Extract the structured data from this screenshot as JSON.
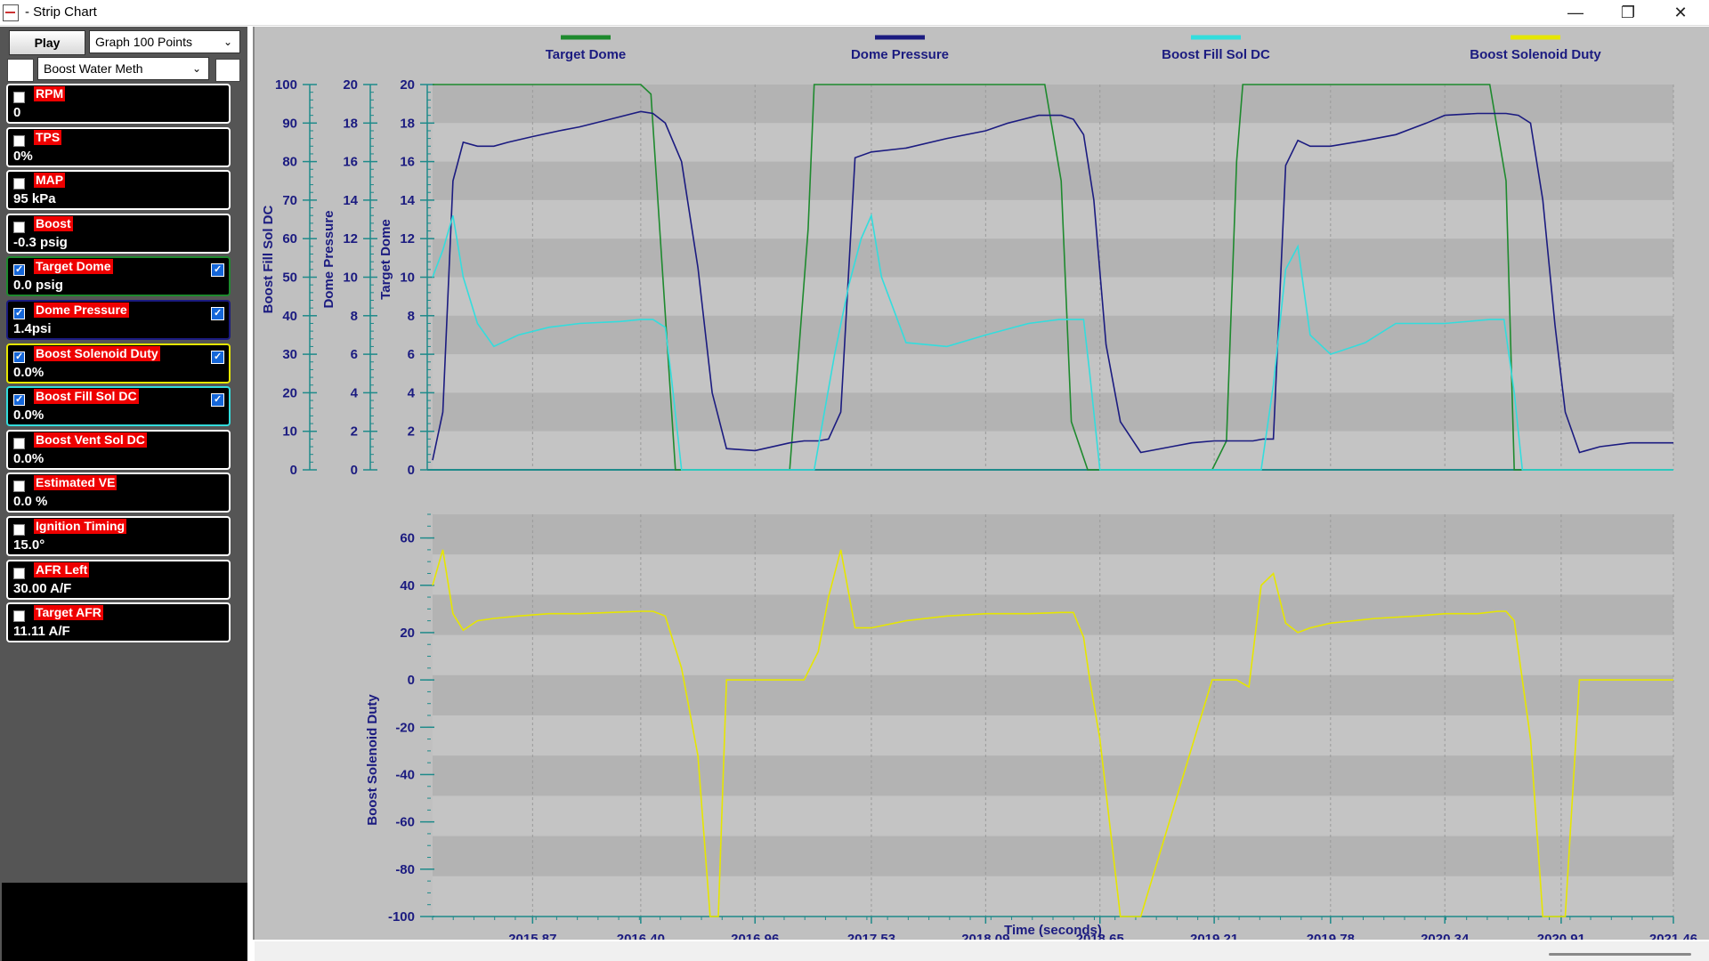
{
  "window": {
    "title": "- Strip Chart",
    "min_label": "—",
    "restore_label": "❐",
    "close_label": "✕"
  },
  "toolbar": {
    "play_label": "Play",
    "graph_select_value": "Graph 100 Points",
    "layout_select_value": "Boost Water Meth"
  },
  "channels": [
    {
      "name": "RPM",
      "value": "0",
      "checked": false,
      "border": "#ffffff",
      "plotted": false
    },
    {
      "name": "TPS",
      "value": "0%",
      "checked": false,
      "border": "#ffffff",
      "plotted": false
    },
    {
      "name": "MAP",
      "value": "95 kPa",
      "checked": false,
      "border": "#ffffff",
      "plotted": false
    },
    {
      "name": "Boost",
      "value": "-0.3 psig",
      "checked": false,
      "border": "#ffffff",
      "plotted": false
    },
    {
      "name": "Target Dome",
      "value": "0.0 psig",
      "checked": true,
      "border": "#1e8a2e",
      "plotted": true
    },
    {
      "name": "Dome Pressure",
      "value": "1.4psi",
      "checked": true,
      "border": "#1b1b80",
      "plotted": true
    },
    {
      "name": "Boost Solenoid Duty",
      "value": "0.0%",
      "checked": true,
      "border": "#e6e600",
      "plotted": true
    },
    {
      "name": "Boost Fill Sol DC",
      "value": "0.0%",
      "checked": true,
      "border": "#33dddd",
      "plotted": true
    },
    {
      "name": "Boost Vent Sol DC",
      "value": "0.0%",
      "checked": false,
      "border": "#ffffff",
      "plotted": false
    },
    {
      "name": "Estimated VE",
      "value": "0.0 %",
      "checked": false,
      "border": "#ffffff",
      "plotted": false
    },
    {
      "name": "Ignition Timing",
      "value": "15.0°",
      "checked": false,
      "border": "#ffffff",
      "plotted": false
    },
    {
      "name": "AFR Left",
      "value": "30.00 A/F",
      "checked": false,
      "border": "#ffffff",
      "plotted": false
    },
    {
      "name": "Target AFR",
      "value": "11.11 A/F",
      "checked": false,
      "border": "#ffffff",
      "plotted": false
    }
  ],
  "chart_data": {
    "type": "line",
    "xlabel": "Time (seconds)",
    "x_ticks": [
      "2015.87",
      "2016.40",
      "2016.96",
      "2017.53",
      "2018.09",
      "2018.65",
      "2019.21",
      "2019.78",
      "2020.34",
      "2020.91",
      "2021.46"
    ],
    "xlim": [
      2015.38,
      2021.46
    ],
    "legend": [
      {
        "name": "Target Dome",
        "color": "#1e8a2e"
      },
      {
        "name": "Dome Pressure",
        "color": "#1b1b80"
      },
      {
        "name": "Boost Fill Sol DC",
        "color": "#33dddd"
      },
      {
        "name": "Boost Solenoid Duty",
        "color": "#e6e600"
      }
    ],
    "legend_position": "top",
    "grid": true,
    "top_axes": [
      {
        "ylabel": "Boost Fill Sol DC",
        "ylim": [
          0,
          100
        ],
        "ticks": [
          "0",
          "10",
          "20",
          "30",
          "40",
          "50",
          "60",
          "70",
          "80",
          "90",
          "100"
        ]
      },
      {
        "ylabel": "Dome Pressure",
        "ylim": [
          0,
          20
        ],
        "ticks": [
          "0",
          "2",
          "4",
          "6",
          "8",
          "10",
          "12",
          "14",
          "16",
          "18",
          "20"
        ]
      },
      {
        "ylabel": "Target Dome",
        "ylim": [
          0,
          20
        ],
        "ticks": [
          "0",
          "2",
          "4",
          "6",
          "8",
          "10",
          "12",
          "14",
          "16",
          "18",
          "20"
        ]
      }
    ],
    "bottom_axis": {
      "ylabel": "Boost Solenoid Duty",
      "ylim": [
        -100,
        70
      ],
      "ticks": [
        "-100",
        "-80",
        "-60",
        "-40",
        "-20",
        "0",
        "20",
        "40",
        "60"
      ]
    },
    "series": [
      {
        "name": "Target Dome",
        "axis": "Target Dome",
        "color": "#1e8a2e",
        "x": [
          2015.38,
          2016.4,
          2016.45,
          2016.57,
          2016.6,
          2017.13,
          2017.22,
          2017.25,
          2018.38,
          2018.46,
          2018.51,
          2018.59,
          2018.65,
          2019.2,
          2019.27,
          2019.32,
          2019.35,
          2020.56,
          2020.64,
          2020.68,
          2021.46
        ],
        "y": [
          20,
          20,
          19.5,
          0,
          0,
          0,
          12.5,
          20,
          20,
          15,
          2.5,
          0,
          0,
          0,
          1.5,
          16,
          20,
          20,
          15,
          0,
          0
        ]
      },
      {
        "name": "Dome Pressure",
        "axis": "Target Dome",
        "color": "#1b1b80",
        "x": [
          2015.38,
          2015.43,
          2015.48,
          2015.53,
          2015.6,
          2015.68,
          2015.75,
          2015.87,
          2016.0,
          2016.1,
          2016.25,
          2016.4,
          2016.46,
          2016.52,
          2016.6,
          2016.68,
          2016.75,
          2016.82,
          2016.96,
          2017.13,
          2017.2,
          2017.27,
          2017.32,
          2017.38,
          2017.45,
          2017.53,
          2017.7,
          2017.9,
          2018.09,
          2018.2,
          2018.35,
          2018.46,
          2018.52,
          2018.57,
          2018.62,
          2018.68,
          2018.75,
          2018.85,
          2019.0,
          2019.1,
          2019.21,
          2019.32,
          2019.4,
          2019.45,
          2019.5,
          2019.56,
          2019.62,
          2019.68,
          2019.78,
          2019.95,
          2020.1,
          2020.25,
          2020.34,
          2020.5,
          2020.64,
          2020.7,
          2020.76,
          2020.82,
          2020.88,
          2020.93,
          2021.0,
          2021.1,
          2021.25,
          2021.46
        ],
        "y": [
          0.5,
          3,
          15,
          17,
          16.8,
          16.8,
          17,
          17.3,
          17.6,
          17.8,
          18.2,
          18.6,
          18.5,
          18,
          16,
          10.5,
          4,
          1.1,
          1,
          1.4,
          1.5,
          1.5,
          1.6,
          3,
          16.2,
          16.5,
          16.7,
          17.2,
          17.6,
          18,
          18.4,
          18.4,
          18.2,
          17.4,
          14,
          6.5,
          2.5,
          0.9,
          1.2,
          1.4,
          1.5,
          1.5,
          1.5,
          1.6,
          1.6,
          15.8,
          17.1,
          16.8,
          16.8,
          17.1,
          17.4,
          18,
          18.4,
          18.5,
          18.5,
          18.4,
          18,
          14,
          7.5,
          3,
          0.9,
          1.2,
          1.4,
          1.4
        ]
      },
      {
        "name": "Boost Fill Sol DC",
        "axis": "Boost Fill Sol DC",
        "color": "#33dddd",
        "x": [
          2015.38,
          2015.43,
          2015.48,
          2015.53,
          2015.6,
          2015.68,
          2015.8,
          2015.95,
          2016.1,
          2016.3,
          2016.4,
          2016.46,
          2016.52,
          2016.55,
          2016.6,
          2017.13,
          2017.25,
          2017.35,
          2017.42,
          2017.48,
          2017.53,
          2017.58,
          2017.7,
          2017.9,
          2018.09,
          2018.3,
          2018.45,
          2018.52,
          2018.57,
          2018.6,
          2018.65,
          2019.21,
          2019.27,
          2019.32,
          2019.38,
          2019.44,
          2019.5,
          2019.56,
          2019.62,
          2019.68,
          2019.78,
          2019.95,
          2020.1,
          2020.34,
          2020.56,
          2020.63,
          2020.68,
          2020.72,
          2021.46
        ],
        "y": [
          50,
          57,
          66,
          50,
          38,
          32,
          35,
          37,
          38,
          38.5,
          39,
          39,
          37,
          24,
          0,
          0,
          0,
          30,
          48,
          60,
          66,
          50,
          33,
          32,
          35,
          38,
          39,
          39,
          39,
          25,
          0,
          0,
          0,
          0,
          0,
          0,
          22,
          52,
          58,
          35,
          30,
          33,
          38,
          38,
          39,
          39,
          20,
          0,
          0
        ]
      },
      {
        "name": "Boost Solenoid Duty",
        "axis": "Boost Solenoid Duty",
        "color": "#e6e600",
        "x": [
          2015.38,
          2015.43,
          2015.48,
          2015.53,
          2015.6,
          2015.68,
          2015.8,
          2015.95,
          2016.1,
          2016.25,
          2016.4,
          2016.46,
          2016.52,
          2016.6,
          2016.68,
          2016.74,
          2016.78,
          2016.82,
          2017.13,
          2017.2,
          2017.27,
          2017.32,
          2017.38,
          2017.45,
          2017.53,
          2017.7,
          2017.9,
          2018.09,
          2018.3,
          2018.46,
          2018.52,
          2018.57,
          2018.6,
          2018.65,
          2018.75,
          2018.8,
          2018.85,
          2019.2,
          2019.26,
          2019.32,
          2019.38,
          2019.44,
          2019.5,
          2019.56,
          2019.62,
          2019.68,
          2019.78,
          2020.0,
          2020.2,
          2020.34,
          2020.5,
          2020.6,
          2020.64,
          2020.68,
          2020.72,
          2020.76,
          2020.82,
          2020.88,
          2020.93,
          2021.0,
          2021.46
        ],
        "y": [
          40,
          55,
          28,
          21,
          25,
          26,
          27,
          28,
          28,
          28.5,
          29,
          29,
          27,
          5,
          -32,
          -100,
          -100,
          0,
          0,
          0,
          12,
          35,
          55,
          22,
          22,
          25,
          27,
          28,
          28,
          28.5,
          28.5,
          18,
          0,
          -25,
          -100,
          -100,
          -100,
          0,
          0,
          0,
          -3,
          40,
          45,
          24,
          20,
          22,
          24,
          26,
          27,
          28,
          28,
          29,
          29,
          25,
          0,
          -25,
          -100,
          -100,
          -100,
          0,
          0
        ]
      }
    ]
  }
}
